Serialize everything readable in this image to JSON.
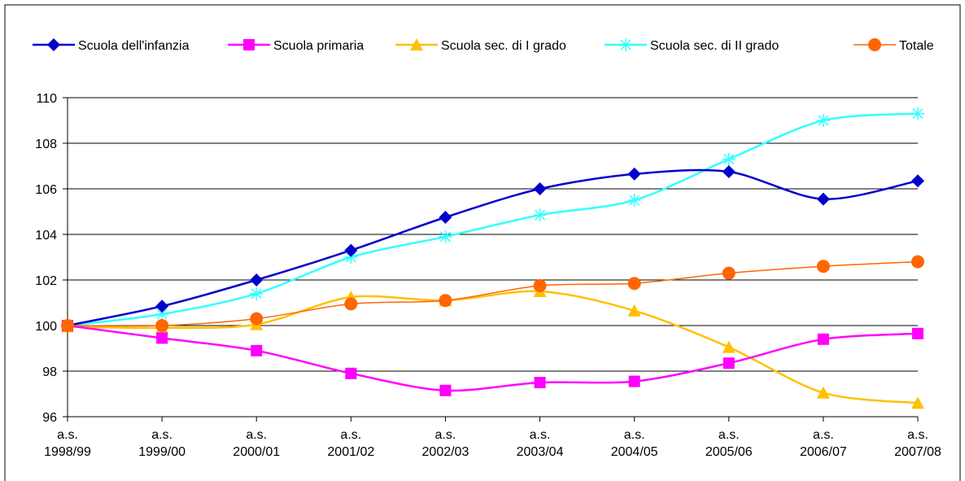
{
  "chart_data": {
    "type": "line",
    "title": "",
    "xlabel": "",
    "ylabel": "",
    "ylim": [
      96,
      110
    ],
    "yticks": [
      96,
      98,
      100,
      102,
      104,
      106,
      108,
      110
    ],
    "grid": "horizontal",
    "legend_position": "top",
    "categories": [
      [
        "a.s.",
        "1998/99"
      ],
      [
        "a.s.",
        "1999/00"
      ],
      [
        "a.s.",
        "2000/01"
      ],
      [
        "a.s.",
        "2001/02"
      ],
      [
        "a.s.",
        "2002/03"
      ],
      [
        "a.s.",
        "2003/04"
      ],
      [
        "a.s.",
        "2004/05"
      ],
      [
        "a.s.",
        "2005/06"
      ],
      [
        "a.s.",
        "2006/07"
      ],
      [
        "a.s.",
        "2007/08"
      ]
    ],
    "series": [
      {
        "name": "Scuola dell'infanzia",
        "color": "#0000CC",
        "marker": "diamond",
        "values": [
          100.0,
          100.85,
          102.0,
          103.3,
          104.75,
          106.0,
          106.65,
          106.75,
          105.55,
          106.35
        ]
      },
      {
        "name": "Scuola primaria",
        "color": "#FF00FF",
        "marker": "square",
        "values": [
          100.0,
          99.45,
          98.9,
          97.9,
          97.15,
          97.5,
          97.55,
          98.35,
          99.4,
          99.65
        ]
      },
      {
        "name": "Scuola sec. di I grado",
        "color": "#FFC000",
        "marker": "triangle",
        "values": [
          99.95,
          99.9,
          100.05,
          101.25,
          101.1,
          101.5,
          100.65,
          99.05,
          97.05,
          96.6
        ]
      },
      {
        "name": "Scuola sec. di II grado",
        "color": "#33FFFF",
        "marker": "asterisk",
        "values": [
          100.0,
          100.5,
          101.4,
          103.0,
          103.9,
          104.85,
          105.5,
          107.3,
          109.0,
          109.3
        ]
      },
      {
        "name": "Totale",
        "color": "#FF6600",
        "marker": "circle",
        "values": [
          100.0,
          100.0,
          100.3,
          100.95,
          101.1,
          101.75,
          101.85,
          102.3,
          102.6,
          102.8
        ]
      }
    ]
  }
}
